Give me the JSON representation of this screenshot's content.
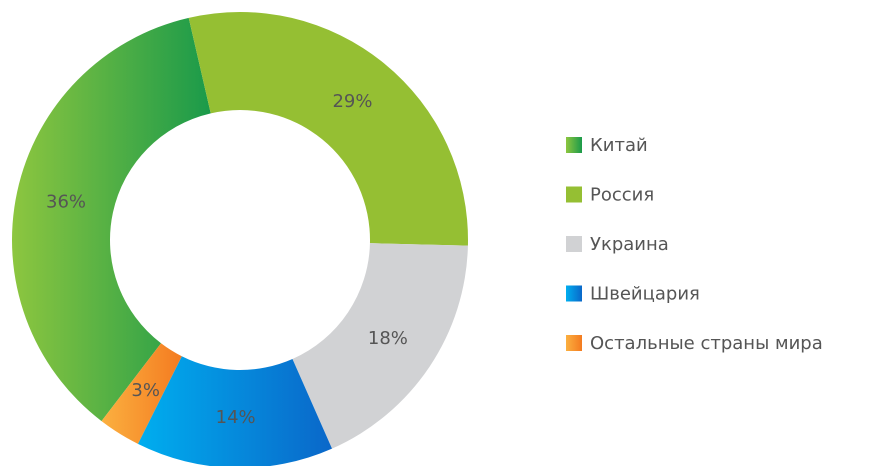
{
  "chart_data": {
    "type": "donut",
    "categories": [
      "Китай",
      "Россия",
      "Украина",
      "Швейцария",
      "Остальные страны мира"
    ],
    "values": [
      36,
      29,
      18,
      14,
      3
    ],
    "value_labels": [
      "36%",
      "29%",
      "18%",
      "14%",
      "3%"
    ],
    "colors": [
      [
        "#8dc63f",
        "#1a9a4a"
      ],
      "#95bf33",
      "#d1d2d4",
      [
        "#00aeef",
        "#0a67c9"
      ],
      [
        "#fbb040",
        "#f47b20"
      ]
    ],
    "legend": "right"
  }
}
